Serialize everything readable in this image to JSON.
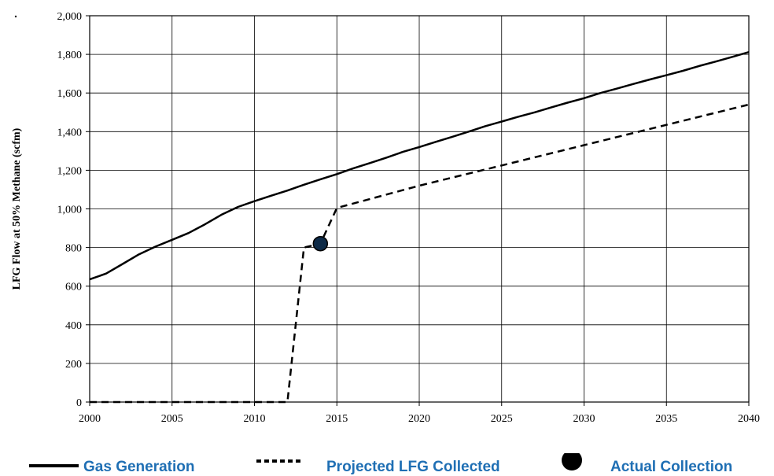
{
  "chart_data": {
    "type": "line",
    "title": "",
    "xlabel": "",
    "ylabel": "LFG Flow at 50% Methane (scfm)",
    "xlim": [
      2000,
      2040
    ],
    "ylim": [
      0,
      2000
    ],
    "x_ticks": [
      "2000",
      "2005",
      "2010",
      "2015",
      "2020",
      "2025",
      "2030",
      "2035",
      "2040"
    ],
    "y_ticks": [
      "0",
      "200",
      "400",
      "600",
      "800",
      "1,000",
      "1,200",
      "1,400",
      "1,600",
      "1,800",
      "2,000"
    ],
    "grid": true,
    "legend_position": "bottom",
    "series": [
      {
        "name": "Gas Generation",
        "style": "solid",
        "x": [
          2000,
          2001,
          2002,
          2003,
          2004,
          2005,
          2006,
          2007,
          2008,
          2009,
          2010,
          2011,
          2012,
          2013,
          2014,
          2015,
          2016,
          2017,
          2018,
          2019,
          2020,
          2021,
          2022,
          2023,
          2024,
          2025,
          2026,
          2027,
          2028,
          2029,
          2030,
          2031,
          2032,
          2033,
          2034,
          2035,
          2036,
          2037,
          2038,
          2039,
          2040
        ],
        "y": [
          635,
          665,
          715,
          765,
          805,
          840,
          875,
          920,
          970,
          1010,
          1040,
          1068,
          1095,
          1125,
          1153,
          1180,
          1210,
          1237,
          1265,
          1295,
          1320,
          1347,
          1373,
          1400,
          1428,
          1452,
          1477,
          1500,
          1525,
          1550,
          1573,
          1600,
          1623,
          1647,
          1670,
          1692,
          1715,
          1740,
          1763,
          1787,
          1812
        ]
      },
      {
        "name": "Projected LFG Collected",
        "style": "dashed",
        "x": [
          2000,
          2005,
          2010,
          2012,
          2013,
          2014,
          2015,
          2020,
          2025,
          2030,
          2035,
          2040
        ],
        "y": [
          0,
          0,
          0,
          0,
          800,
          820,
          1005,
          1120,
          1225,
          1330,
          1435,
          1540
        ]
      },
      {
        "name": "Actual Collection",
        "style": "marker",
        "x": [
          2014
        ],
        "y": [
          820
        ]
      }
    ]
  },
  "legend": {
    "items": [
      {
        "label": "Gas Generation"
      },
      {
        "label": "Projected LFG Collected"
      },
      {
        "label": "Actual Collection"
      }
    ]
  },
  "colors": {
    "line": "#000000",
    "marker_fill": "#0d2a47",
    "legend_text": "#1f6fb4",
    "grid": "#000000"
  }
}
